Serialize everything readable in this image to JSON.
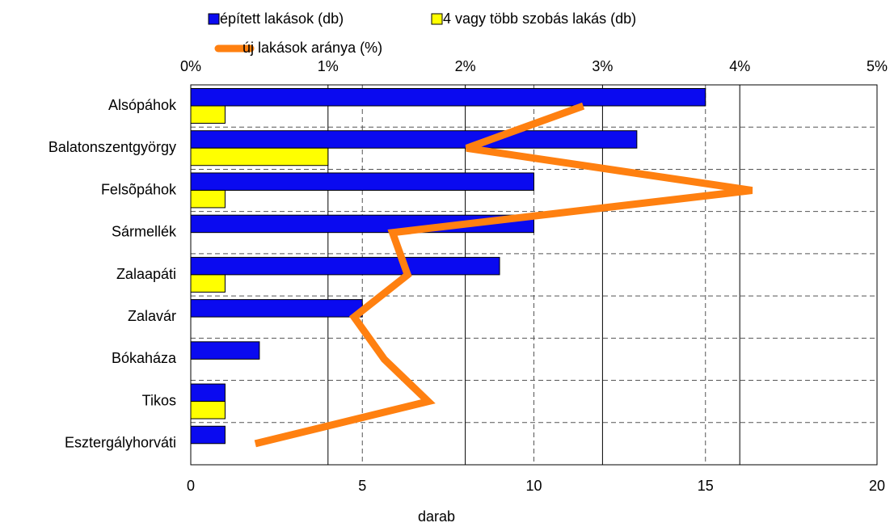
{
  "chart_data": {
    "type": "bar",
    "orientation": "horizontal",
    "xlabel": "darab",
    "categories": [
      "Alsópáhok",
      "Balatonszentgyörgy",
      "Felsõpáhok",
      "Sármellék",
      "Zalaapáti",
      "Zalavár",
      "Bókaháza",
      "Tikos",
      "Esztergályhorváti"
    ],
    "series": [
      {
        "name": "épített lakások (db)",
        "type": "bar",
        "color": "#0a0af0",
        "values": [
          15,
          13,
          10,
          10,
          9,
          5,
          2,
          1,
          1
        ]
      },
      {
        "name": "4 vagy több szobás lakás (db)",
        "type": "bar",
        "color": "#ffff00",
        "values": [
          1,
          4,
          1,
          0,
          1,
          0,
          0,
          1,
          0
        ]
      },
      {
        "name": "új lakások aránya (%)",
        "type": "line",
        "axis": "x2",
        "color": "#ff8010",
        "values": [
          2.86,
          2.01,
          4.09,
          1.47,
          1.58,
          1.19,
          1.41,
          1.73,
          0.47
        ]
      }
    ],
    "xlim": [
      0,
      20
    ],
    "xticks": [
      0,
      5,
      10,
      15,
      20
    ],
    "x2lim": [
      0,
      5
    ],
    "x2ticks": [
      {
        "value": 0,
        "label": "0%"
      },
      {
        "value": 1,
        "label": "1%"
      },
      {
        "value": 2,
        "label": "2%"
      },
      {
        "value": 3,
        "label": "3%"
      },
      {
        "value": 4,
        "label": "4%"
      },
      {
        "value": 5,
        "label": "5%"
      }
    ],
    "grid": true
  }
}
